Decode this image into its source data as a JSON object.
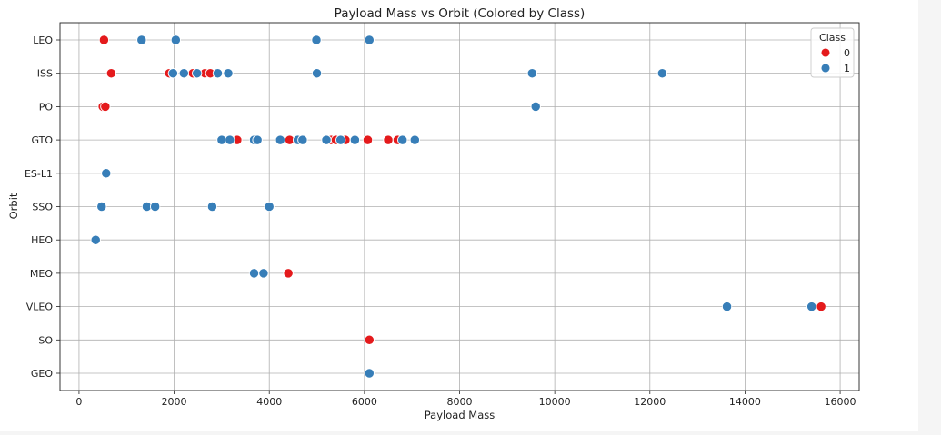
{
  "chart_data": {
    "type": "scatter",
    "title": "Payload Mass vs Orbit (Colored by Class)",
    "xlabel": "Payload Mass",
    "ylabel": "Orbit",
    "xlim": [
      -400,
      16400
    ],
    "x_ticks": [
      "0",
      "2000",
      "4000",
      "6000",
      "8000",
      "10000",
      "12000",
      "14000",
      "16000"
    ],
    "x_tick_values": [
      0,
      2000,
      4000,
      6000,
      8000,
      10000,
      12000,
      14000,
      16000
    ],
    "y_categories": [
      "LEO",
      "ISS",
      "PO",
      "GTO",
      "ES-L1",
      "SSO",
      "HEO",
      "MEO",
      "VLEO",
      "SO",
      "GEO"
    ],
    "grid": true,
    "legend": {
      "title": "Class",
      "position": "top-right",
      "entries": [
        {
          "label": "0",
          "color": "#e41a1c"
        },
        {
          "label": "1",
          "color": "#377eb8"
        }
      ]
    },
    "series": [
      {
        "name": "0",
        "color": "#e41a1c",
        "points": [
          {
            "x": 525,
            "y": "LEO"
          },
          {
            "x": 677,
            "y": "ISS"
          },
          {
            "x": 1898,
            "y": "ISS"
          },
          {
            "x": 2395,
            "y": "ISS"
          },
          {
            "x": 2500,
            "y": "ISS"
          },
          {
            "x": 2647,
            "y": "ISS"
          },
          {
            "x": 2760,
            "y": "ISS"
          },
          {
            "x": 500,
            "y": "PO"
          },
          {
            "x": 553,
            "y": "PO"
          },
          {
            "x": 3325,
            "y": "GTO"
          },
          {
            "x": 4428,
            "y": "GTO"
          },
          {
            "x": 5300,
            "y": "GTO"
          },
          {
            "x": 5400,
            "y": "GTO"
          },
          {
            "x": 5600,
            "y": "GTO"
          },
          {
            "x": 6070,
            "y": "GTO"
          },
          {
            "x": 6500,
            "y": "GTO"
          },
          {
            "x": 6700,
            "y": "GTO"
          },
          {
            "x": 4400,
            "y": "MEO"
          },
          {
            "x": 15600,
            "y": "VLEO"
          },
          {
            "x": 6104,
            "y": "SO"
          }
        ]
      },
      {
        "name": "1",
        "color": "#377eb8",
        "points": [
          {
            "x": 1316,
            "y": "LEO"
          },
          {
            "x": 2034,
            "y": "LEO"
          },
          {
            "x": 4990,
            "y": "LEO"
          },
          {
            "x": 6104,
            "y": "LEO"
          },
          {
            "x": 1977,
            "y": "ISS"
          },
          {
            "x": 2205,
            "y": "ISS"
          },
          {
            "x": 2480,
            "y": "ISS"
          },
          {
            "x": 2916,
            "y": "ISS"
          },
          {
            "x": 3136,
            "y": "ISS"
          },
          {
            "x": 5000,
            "y": "ISS"
          },
          {
            "x": 9525,
            "y": "ISS"
          },
          {
            "x": 12259,
            "y": "ISS"
          },
          {
            "x": 9600,
            "y": "PO"
          },
          {
            "x": 3000,
            "y": "GTO"
          },
          {
            "x": 3170,
            "y": "GTO"
          },
          {
            "x": 3681,
            "y": "GTO"
          },
          {
            "x": 3750,
            "y": "GTO"
          },
          {
            "x": 4230,
            "y": "GTO"
          },
          {
            "x": 4600,
            "y": "GTO"
          },
          {
            "x": 4700,
            "y": "GTO"
          },
          {
            "x": 5200,
            "y": "GTO"
          },
          {
            "x": 5500,
            "y": "GTO"
          },
          {
            "x": 5800,
            "y": "GTO"
          },
          {
            "x": 6800,
            "y": "GTO"
          },
          {
            "x": 7060,
            "y": "GTO"
          },
          {
            "x": 570,
            "y": "ES-L1"
          },
          {
            "x": 475,
            "y": "SSO"
          },
          {
            "x": 1425,
            "y": "SSO"
          },
          {
            "x": 1600,
            "y": "SSO"
          },
          {
            "x": 2800,
            "y": "SSO"
          },
          {
            "x": 4000,
            "y": "SSO"
          },
          {
            "x": 350,
            "y": "HEO"
          },
          {
            "x": 3681,
            "y": "MEO"
          },
          {
            "x": 3880,
            "y": "MEO"
          },
          {
            "x": 13620,
            "y": "VLEO"
          },
          {
            "x": 15400,
            "y": "VLEO"
          },
          {
            "x": 6104,
            "y": "GEO"
          }
        ]
      }
    ]
  }
}
